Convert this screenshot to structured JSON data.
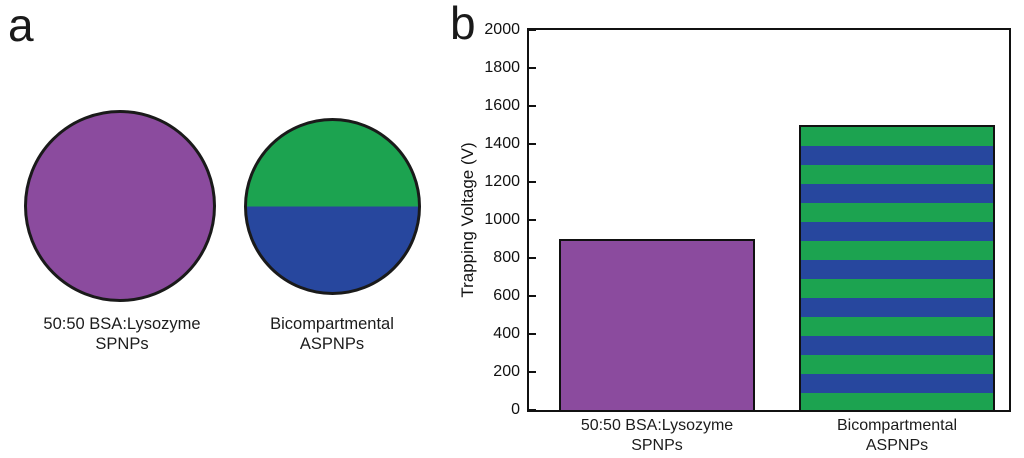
{
  "figure": {
    "panel_a": {
      "label": "a",
      "items": [
        {
          "name": "SPNPs",
          "fill": "solid",
          "color": "#8B4B9E",
          "caption_line1": "50:50 BSA:Lysozyme",
          "caption_line2": "SPNPs"
        },
        {
          "name": "ASPNPs",
          "fill": "split-horizontal",
          "top_color": "#1CA350",
          "bottom_color": "#27479E",
          "caption_line1": "Bicompartmental",
          "caption_line2": "ASPNPs"
        }
      ]
    },
    "panel_b": {
      "label": "b"
    }
  },
  "chart_data": {
    "type": "bar",
    "title": "",
    "xlabel": "",
    "ylabel": "Trapping Voltage (V)",
    "ylim": [
      0,
      2000
    ],
    "yticks": [
      0,
      200,
      400,
      600,
      800,
      1000,
      1200,
      1400,
      1600,
      1800,
      2000
    ],
    "categories": [
      "50:50 BSA:Lysozyme SPNPs",
      "Bicompartmental ASPNPs"
    ],
    "category_lines": [
      [
        "50:50 BSA:Lysozyme",
        "SPNPs"
      ],
      [
        "Bicompartmental",
        "ASPNPs"
      ]
    ],
    "values": [
      900,
      1500
    ],
    "grid": false,
    "legend": false,
    "frame": "box",
    "bars": [
      {
        "fill": "solid",
        "color": "#8B4B9E"
      },
      {
        "fill": "striped-horizontal",
        "stripe_colors": [
          "#1CA350",
          "#27479E"
        ],
        "stripe_count": 15
      }
    ]
  }
}
